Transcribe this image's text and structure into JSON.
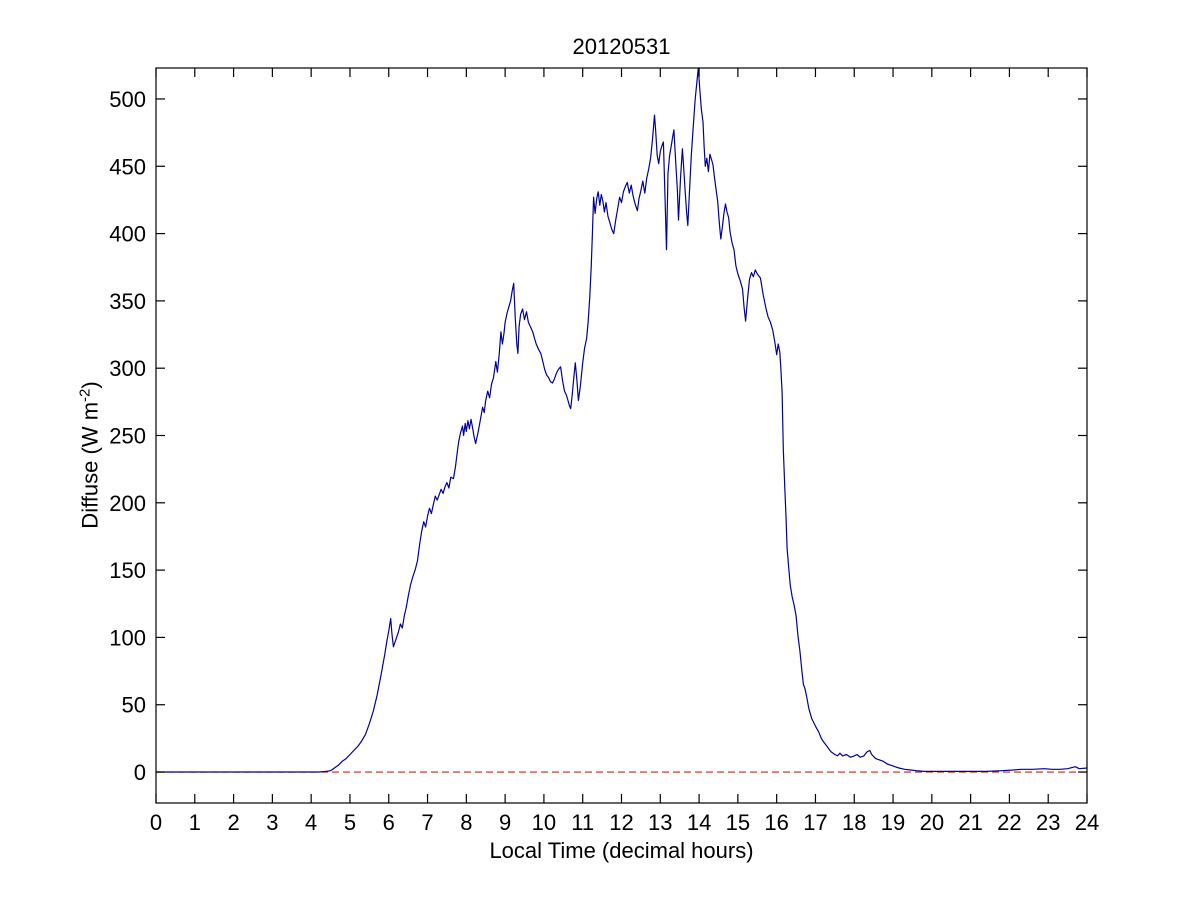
{
  "figure": {
    "title": "20120531",
    "xlabel": "Local Time (decimal hours)",
    "ylabel_prefix": "Diffuse (W m",
    "ylabel_sup": "-2",
    "ylabel_suffix": ")"
  },
  "chart_data": {
    "type": "line",
    "title": "20120531",
    "xlabel": "Local Time (decimal hours)",
    "ylabel": "Diffuse (W m^-2)",
    "xlim": [
      0,
      24
    ],
    "ylim": [
      -23,
      523
    ],
    "xticks": [
      0,
      1,
      2,
      3,
      4,
      5,
      6,
      7,
      8,
      9,
      10,
      11,
      12,
      13,
      14,
      15,
      16,
      17,
      18,
      19,
      20,
      21,
      22,
      23,
      24
    ],
    "yticks": [
      0,
      50,
      100,
      150,
      200,
      250,
      300,
      350,
      400,
      450,
      500
    ],
    "grid": false,
    "legend": null,
    "axis_color": "#000000",
    "background": "#ffffff",
    "reference_line": {
      "y": 0,
      "color": "#cc2222",
      "style": "dashed"
    },
    "series": [
      {
        "name": "diffuse",
        "color": "#0000a0",
        "points": [
          [
            0,
            0
          ],
          [
            0.3,
            0
          ],
          [
            0.6,
            0
          ],
          [
            0.9,
            0
          ],
          [
            1.2,
            0
          ],
          [
            1.5,
            0
          ],
          [
            1.8,
            0
          ],
          [
            2.1,
            0
          ],
          [
            2.4,
            0
          ],
          [
            2.7,
            0
          ],
          [
            3.0,
            0
          ],
          [
            3.3,
            0
          ],
          [
            3.6,
            0
          ],
          [
            3.9,
            0
          ],
          [
            4.2,
            0
          ],
          [
            4.4,
            0.5
          ],
          [
            4.5,
            1
          ],
          [
            4.6,
            3
          ],
          [
            4.7,
            5
          ],
          [
            4.8,
            8
          ],
          [
            4.9,
            10
          ],
          [
            5.0,
            13
          ],
          [
            5.1,
            16
          ],
          [
            5.2,
            19
          ],
          [
            5.3,
            23
          ],
          [
            5.4,
            28
          ],
          [
            5.5,
            36
          ],
          [
            5.6,
            45
          ],
          [
            5.7,
            57
          ],
          [
            5.8,
            72
          ],
          [
            5.9,
            88
          ],
          [
            5.95,
            97
          ],
          [
            6.0,
            105
          ],
          [
            6.05,
            114
          ],
          [
            6.08,
            103
          ],
          [
            6.12,
            93
          ],
          [
            6.18,
            98
          ],
          [
            6.25,
            104
          ],
          [
            6.3,
            110
          ],
          [
            6.35,
            107
          ],
          [
            6.4,
            116
          ],
          [
            6.45,
            122
          ],
          [
            6.5,
            130
          ],
          [
            6.56,
            139
          ],
          [
            6.62,
            145
          ],
          [
            6.68,
            150
          ],
          [
            6.74,
            157
          ],
          [
            6.8,
            170
          ],
          [
            6.85,
            179
          ],
          [
            6.9,
            186
          ],
          [
            6.95,
            182
          ],
          [
            7.0,
            190
          ],
          [
            7.05,
            196
          ],
          [
            7.1,
            192
          ],
          [
            7.15,
            199
          ],
          [
            7.2,
            205
          ],
          [
            7.25,
            202
          ],
          [
            7.3,
            206
          ],
          [
            7.35,
            210
          ],
          [
            7.4,
            207
          ],
          [
            7.45,
            212
          ],
          [
            7.5,
            215
          ],
          [
            7.55,
            211
          ],
          [
            7.6,
            219
          ],
          [
            7.67,
            218
          ],
          [
            7.72,
            227
          ],
          [
            7.76,
            236
          ],
          [
            7.8,
            245
          ],
          [
            7.85,
            252
          ],
          [
            7.9,
            257
          ],
          [
            7.93,
            250
          ],
          [
            7.97,
            259
          ],
          [
            8.0,
            253
          ],
          [
            8.04,
            261
          ],
          [
            8.08,
            255
          ],
          [
            8.12,
            262
          ],
          [
            8.16,
            256
          ],
          [
            8.2,
            249
          ],
          [
            8.24,
            244
          ],
          [
            8.3,
            252
          ],
          [
            8.37,
            263
          ],
          [
            8.42,
            271
          ],
          [
            8.46,
            267
          ],
          [
            8.5,
            276
          ],
          [
            8.55,
            283
          ],
          [
            8.6,
            278
          ],
          [
            8.65,
            288
          ],
          [
            8.7,
            293
          ],
          [
            8.76,
            305
          ],
          [
            8.8,
            297
          ],
          [
            8.85,
            311
          ],
          [
            8.89,
            327
          ],
          [
            8.93,
            318
          ],
          [
            8.97,
            326
          ],
          [
            9.0,
            334
          ],
          [
            9.05,
            341
          ],
          [
            9.1,
            346
          ],
          [
            9.14,
            350
          ],
          [
            9.18,
            357
          ],
          [
            9.22,
            363
          ],
          [
            9.26,
            338
          ],
          [
            9.3,
            318
          ],
          [
            9.33,
            311
          ],
          [
            9.36,
            331
          ],
          [
            9.4,
            340
          ],
          [
            9.45,
            344
          ],
          [
            9.5,
            336
          ],
          [
            9.55,
            342
          ],
          [
            9.6,
            334
          ],
          [
            9.65,
            331
          ],
          [
            9.71,
            327
          ],
          [
            9.76,
            322
          ],
          [
            9.8,
            318
          ],
          [
            9.86,
            314
          ],
          [
            9.92,
            311
          ],
          [
            9.97,
            305
          ],
          [
            10.02,
            299
          ],
          [
            10.07,
            295
          ],
          [
            10.12,
            293
          ],
          [
            10.17,
            290
          ],
          [
            10.22,
            289
          ],
          [
            10.27,
            292
          ],
          [
            10.32,
            296
          ],
          [
            10.37,
            299
          ],
          [
            10.43,
            301
          ],
          [
            10.48,
            291
          ],
          [
            10.53,
            283
          ],
          [
            10.58,
            280
          ],
          [
            10.62,
            276
          ],
          [
            10.66,
            272
          ],
          [
            10.69,
            270
          ],
          [
            10.73,
            280
          ],
          [
            10.77,
            293
          ],
          [
            10.81,
            304
          ],
          [
            10.85,
            291
          ],
          [
            10.89,
            276
          ],
          [
            10.94,
            287
          ],
          [
            11.0,
            304
          ],
          [
            11.05,
            315
          ],
          [
            11.1,
            322
          ],
          [
            11.14,
            334
          ],
          [
            11.18,
            352
          ],
          [
            11.22,
            375
          ],
          [
            11.25,
            400
          ],
          [
            11.28,
            427
          ],
          [
            11.32,
            415
          ],
          [
            11.36,
            426
          ],
          [
            11.4,
            431
          ],
          [
            11.44,
            421
          ],
          [
            11.48,
            429
          ],
          [
            11.52,
            424
          ],
          [
            11.56,
            416
          ],
          [
            11.6,
            423
          ],
          [
            11.65,
            413
          ],
          [
            11.7,
            408
          ],
          [
            11.75,
            403
          ],
          [
            11.8,
            400
          ],
          [
            11.85,
            410
          ],
          [
            11.9,
            418
          ],
          [
            11.95,
            427
          ],
          [
            12.0,
            423
          ],
          [
            12.05,
            431
          ],
          [
            12.1,
            435
          ],
          [
            12.15,
            438
          ],
          [
            12.2,
            430
          ],
          [
            12.25,
            436
          ],
          [
            12.3,
            428
          ],
          [
            12.35,
            422
          ],
          [
            12.41,
            417
          ],
          [
            12.45,
            426
          ],
          [
            12.5,
            432
          ],
          [
            12.55,
            439
          ],
          [
            12.6,
            430
          ],
          [
            12.65,
            441
          ],
          [
            12.7,
            448
          ],
          [
            12.75,
            456
          ],
          [
            12.8,
            470
          ],
          [
            12.85,
            488
          ],
          [
            12.88,
            477
          ],
          [
            12.92,
            458
          ],
          [
            12.96,
            452
          ],
          [
            13.0,
            461
          ],
          [
            13.04,
            465
          ],
          [
            13.08,
            468
          ],
          [
            13.12,
            430
          ],
          [
            13.16,
            388
          ],
          [
            13.2,
            445
          ],
          [
            13.24,
            458
          ],
          [
            13.28,
            465
          ],
          [
            13.32,
            472
          ],
          [
            13.35,
            477
          ],
          [
            13.4,
            452
          ],
          [
            13.44,
            432
          ],
          [
            13.47,
            410
          ],
          [
            13.52,
            441
          ],
          [
            13.57,
            463
          ],
          [
            13.6,
            450
          ],
          [
            13.64,
            432
          ],
          [
            13.68,
            415
          ],
          [
            13.71,
            406
          ],
          [
            13.75,
            430
          ],
          [
            13.8,
            458
          ],
          [
            13.85,
            480
          ],
          [
            13.9,
            500
          ],
          [
            13.94,
            512
          ],
          [
            13.98,
            523
          ],
          [
            14.02,
            506
          ],
          [
            14.06,
            492
          ],
          [
            14.1,
            483
          ],
          [
            14.13,
            465
          ],
          [
            14.16,
            450
          ],
          [
            14.2,
            456
          ],
          [
            14.24,
            446
          ],
          [
            14.28,
            459
          ],
          [
            14.32,
            455
          ],
          [
            14.36,
            451
          ],
          [
            14.4,
            441
          ],
          [
            14.44,
            432
          ],
          [
            14.48,
            424
          ],
          [
            14.52,
            408
          ],
          [
            14.56,
            396
          ],
          [
            14.6,
            405
          ],
          [
            14.64,
            415
          ],
          [
            14.68,
            422
          ],
          [
            14.72,
            416
          ],
          [
            14.76,
            412
          ],
          [
            14.8,
            401
          ],
          [
            14.85,
            393
          ],
          [
            14.9,
            388
          ],
          [
            14.95,
            376
          ],
          [
            15.0,
            370
          ],
          [
            15.06,
            365
          ],
          [
            15.12,
            359
          ],
          [
            15.16,
            345
          ],
          [
            15.2,
            335
          ],
          [
            15.25,
            352
          ],
          [
            15.3,
            366
          ],
          [
            15.35,
            371
          ],
          [
            15.4,
            368
          ],
          [
            15.45,
            373
          ],
          [
            15.5,
            370
          ],
          [
            15.58,
            367
          ],
          [
            15.65,
            355
          ],
          [
            15.72,
            345
          ],
          [
            15.78,
            338
          ],
          [
            15.84,
            334
          ],
          [
            15.9,
            328
          ],
          [
            15.95,
            320
          ],
          [
            16.0,
            310
          ],
          [
            16.04,
            318
          ],
          [
            16.08,
            312
          ],
          [
            16.11,
            299
          ],
          [
            16.14,
            282
          ],
          [
            16.17,
            240
          ],
          [
            16.21,
            211
          ],
          [
            16.24,
            190
          ],
          [
            16.27,
            166
          ],
          [
            16.31,
            152
          ],
          [
            16.35,
            139
          ],
          [
            16.4,
            130
          ],
          [
            16.45,
            124
          ],
          [
            16.5,
            116
          ],
          [
            16.55,
            101
          ],
          [
            16.6,
            90
          ],
          [
            16.65,
            75
          ],
          [
            16.69,
            65
          ],
          [
            16.73,
            62
          ],
          [
            16.78,
            55
          ],
          [
            16.83,
            47
          ],
          [
            16.9,
            40
          ],
          [
            17.0,
            34
          ],
          [
            17.08,
            30
          ],
          [
            17.15,
            25
          ],
          [
            17.22,
            22
          ],
          [
            17.3,
            19
          ],
          [
            17.4,
            15
          ],
          [
            17.5,
            13
          ],
          [
            17.57,
            12
          ],
          [
            17.63,
            14
          ],
          [
            17.7,
            12
          ],
          [
            17.8,
            13
          ],
          [
            17.9,
            11
          ],
          [
            18.0,
            12
          ],
          [
            18.07,
            13
          ],
          [
            18.15,
            11
          ],
          [
            18.25,
            12
          ],
          [
            18.33,
            15
          ],
          [
            18.4,
            16
          ],
          [
            18.45,
            13
          ],
          [
            18.55,
            10
          ],
          [
            18.65,
            9
          ],
          [
            18.75,
            8
          ],
          [
            18.85,
            6
          ],
          [
            18.95,
            5
          ],
          [
            19.05,
            4
          ],
          [
            19.15,
            3
          ],
          [
            19.3,
            2
          ],
          [
            19.45,
            1.5
          ],
          [
            19.6,
            1
          ],
          [
            19.8,
            0.5
          ],
          [
            20.0,
            0.5
          ],
          [
            20.3,
            0.5
          ],
          [
            20.6,
            0.5
          ],
          [
            21.0,
            0.5
          ],
          [
            21.4,
            0.5
          ],
          [
            21.8,
            1
          ],
          [
            22.1,
            1.5
          ],
          [
            22.3,
            2
          ],
          [
            22.6,
            2
          ],
          [
            22.9,
            2.5
          ],
          [
            23.1,
            2
          ],
          [
            23.3,
            2
          ],
          [
            23.5,
            2.5
          ],
          [
            23.7,
            4
          ],
          [
            23.8,
            2.5
          ],
          [
            24.0,
            3
          ]
        ]
      }
    ]
  }
}
